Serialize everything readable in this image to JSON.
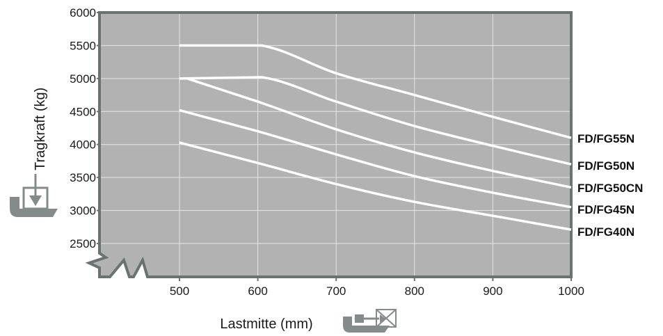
{
  "chart_data": {
    "type": "line",
    "xlabel": "Lastmitte (mm)",
    "ylabel": "Tragkraft (kg)",
    "xlim": [
      400,
      1000
    ],
    "ylim": [
      2300,
      6000
    ],
    "x_ticks": [
      500,
      600,
      700,
      800,
      900,
      1000
    ],
    "y_ticks": [
      2500,
      3000,
      3500,
      4000,
      4500,
      5000,
      5500,
      6000
    ],
    "grid": true,
    "axis_break": "x and y (zigzag at lower left)",
    "plot_background": "#b2b2b2",
    "frame_color": "#6a7372",
    "line_color": "#ffffff",
    "icon_color": "#848b8a",
    "series": [
      {
        "name": "FD/FG55N",
        "x": [
          500,
          605,
          700,
          800,
          900,
          1000
        ],
        "y": [
          5500,
          5500,
          5080,
          4750,
          4420,
          4100
        ]
      },
      {
        "name": "FD/FG50N",
        "x": [
          500,
          605,
          700,
          800,
          900,
          1000
        ],
        "y": [
          5000,
          5020,
          4650,
          4280,
          3980,
          3700
        ]
      },
      {
        "name": "FD/FG50CN",
        "x": [
          510,
          600,
          700,
          800,
          900,
          1000
        ],
        "y": [
          5000,
          4650,
          4230,
          3880,
          3600,
          3350
        ]
      },
      {
        "name": "FD/FG45N",
        "x": [
          500,
          600,
          700,
          800,
          900,
          1000
        ],
        "y": [
          4520,
          4200,
          3850,
          3520,
          3270,
          3050
        ]
      },
      {
        "name": "FD/FG40N",
        "x": [
          500,
          600,
          700,
          800,
          900,
          1000
        ],
        "y": [
          4030,
          3720,
          3400,
          3130,
          2920,
          2710
        ]
      }
    ],
    "icons": [
      "load-weight-icon",
      "load-center-icon"
    ]
  }
}
